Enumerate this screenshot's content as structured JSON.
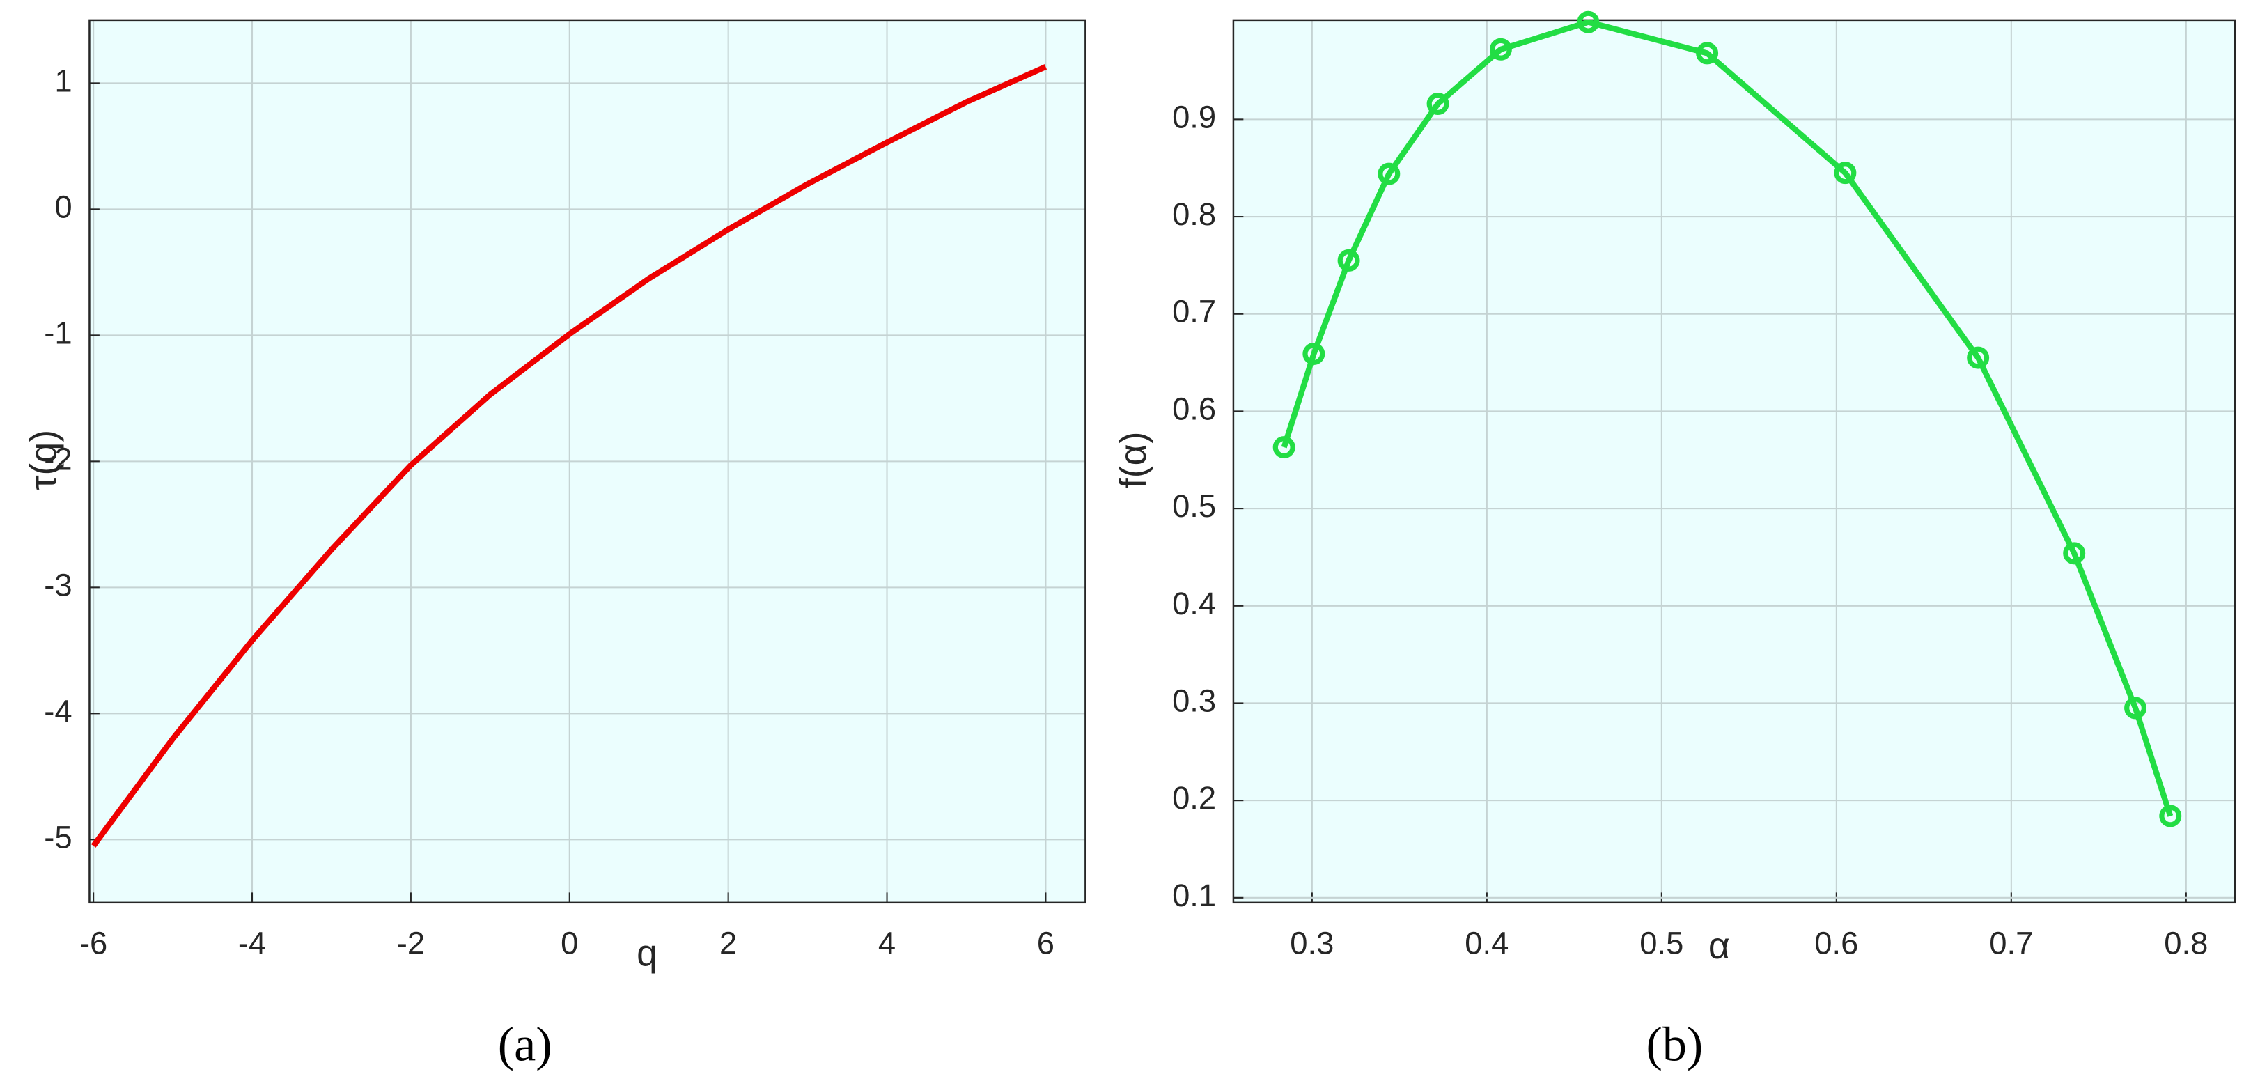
{
  "chart_data": [
    {
      "type": "line",
      "caption": "(a)",
      "xlabel": "q",
      "ylabel": "τ(q)",
      "x": [
        -6,
        -5,
        -4,
        -3,
        -2,
        -1,
        0,
        1,
        2,
        3,
        4,
        5,
        6
      ],
      "values": [
        -5.05,
        -4.2,
        -3.42,
        -2.7,
        -2.03,
        -1.47,
        -0.99,
        -0.55,
        -0.16,
        0.2,
        0.53,
        0.85,
        1.13
      ],
      "color": "#ee0000",
      "background": "#ebfefe",
      "grid": true,
      "xlim": [
        -6.05,
        6.5
      ],
      "ylim": [
        -5.5,
        1.5
      ],
      "xticks": [
        -6,
        -4,
        -2,
        0,
        2,
        4,
        6
      ],
      "yticks": [
        -5,
        -4,
        -3,
        -2,
        -1,
        0,
        1
      ]
    },
    {
      "type": "line",
      "caption": "(b)",
      "xlabel": "α",
      "ylabel": "f(α)",
      "marker": "circle",
      "x": [
        0.284,
        0.301,
        0.321,
        0.344,
        0.372,
        0.408,
        0.458,
        0.526,
        0.605,
        0.681,
        0.736,
        0.771,
        0.791
      ],
      "values": [
        0.563,
        0.659,
        0.755,
        0.844,
        0.916,
        0.972,
        1.0,
        0.968,
        0.845,
        0.655,
        0.454,
        0.295,
        0.184
      ],
      "color": "#22dd44",
      "background": "#ebfefe",
      "grid": true,
      "xlim": [
        0.255,
        0.828
      ],
      "ylim": [
        0.095,
        1.002
      ],
      "xticks": [
        0.3,
        0.4,
        0.5,
        0.6,
        0.7,
        0.8
      ],
      "yticks": [
        0.1,
        0.2,
        0.3,
        0.4,
        0.5,
        0.6,
        0.7,
        0.8,
        0.9
      ]
    }
  ]
}
